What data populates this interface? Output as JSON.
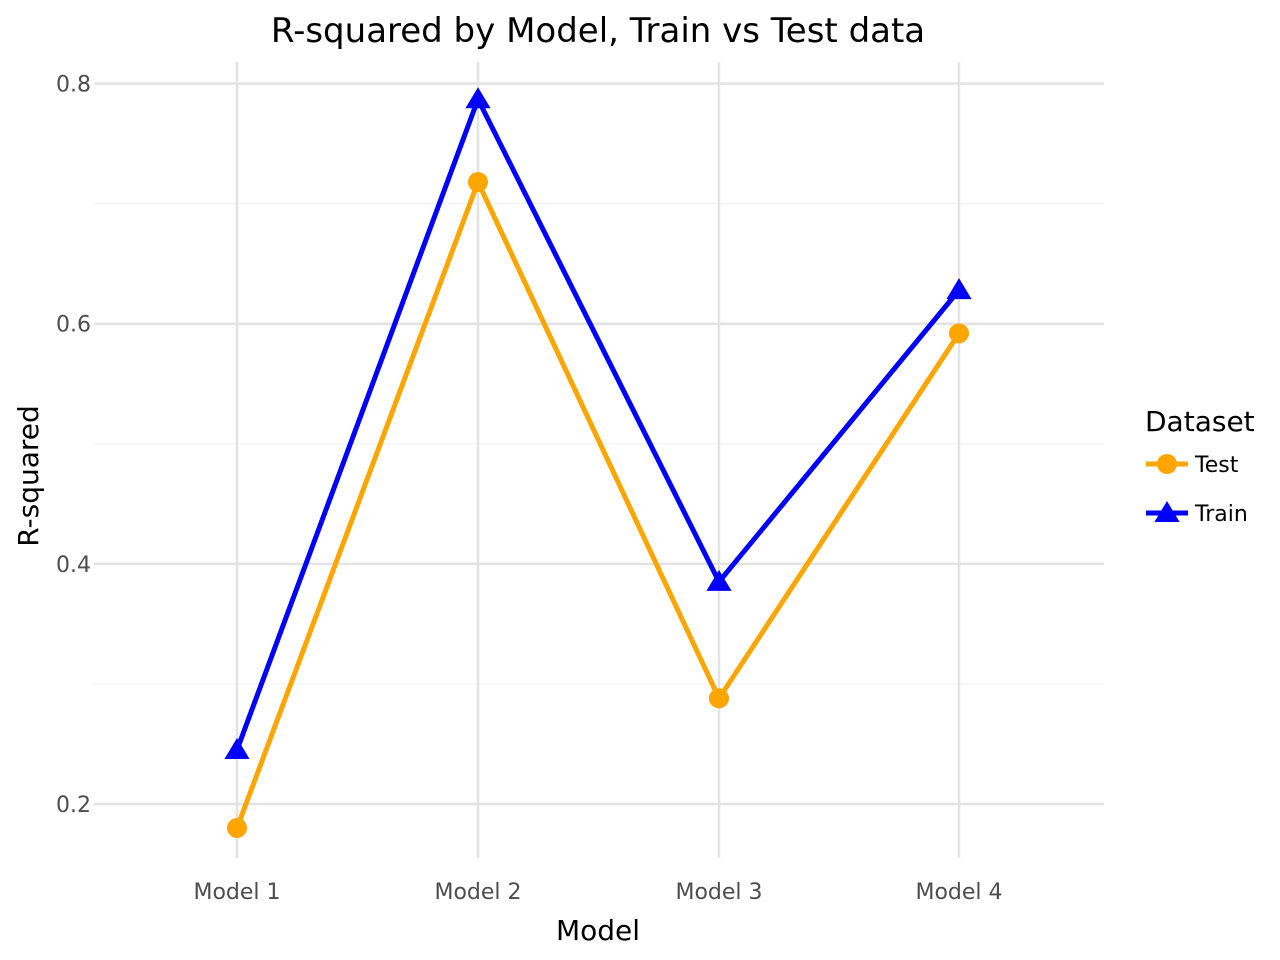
{
  "chart_data": {
    "type": "line",
    "title": "R-squared by Model, Train vs Test data",
    "xlabel": "Model",
    "ylabel": "R-squared",
    "categories": [
      "Model 1",
      "Model 2",
      "Model 3",
      "Model 4"
    ],
    "y_ticks": [
      0.2,
      0.4,
      0.6,
      0.8
    ],
    "y_tick_labels": [
      "0.2",
      "0.4",
      "0.6",
      "0.8"
    ],
    "ylim": [
      0.155,
      0.818
    ],
    "grid": true,
    "legend": {
      "title": "Dataset",
      "placement": "right"
    },
    "series": [
      {
        "name": "Test",
        "color": "#FFA500",
        "marker": "circle",
        "values": [
          0.18,
          0.718,
          0.288,
          0.592
        ]
      },
      {
        "name": "Train",
        "color": "#0000FF",
        "marker": "triangle",
        "values": [
          0.245,
          0.787,
          0.385,
          0.628
        ]
      }
    ]
  }
}
